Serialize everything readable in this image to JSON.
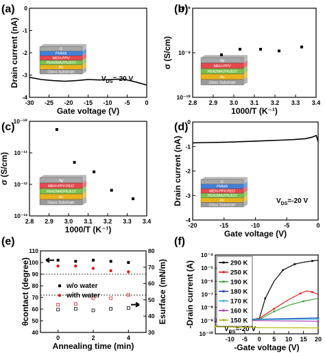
{
  "panels": [
    {
      "label": "(a)",
      "chart_data": {
        "type": "line",
        "xlabel": "Gate voltage (V)",
        "ylabel": "Drain current (nA)",
        "xlim": [
          -30,
          0
        ],
        "ylim": [
          -4,
          0
        ],
        "xticks": [
          "-30",
          "-25",
          "-20",
          "-15",
          "-10",
          "-5",
          "0"
        ],
        "yticks": [
          "-4",
          "-3",
          "-2",
          "-1",
          "0"
        ],
        "annotation": "V_DS=-20 V",
        "inset_layers": [
          "G",
          "PMMA",
          "MEH-PPV",
          "PEA2MA2Pb3I10",
          "Au",
          "Glass Substrate"
        ],
        "series": [
          {
            "x": [
              -30,
              -27,
              -24,
              -21,
              -18,
              -15,
              -12,
              -9,
              -6,
              -3,
              0
            ],
            "y": [
              -3.1,
              -3.2,
              -3.25,
              -3.28,
              -3.25,
              -3.2,
              -3.22,
              -3.2,
              -3.18,
              -3.3,
              -3.45
            ]
          }
        ]
      }
    },
    {
      "label": "(b)",
      "chart_data": {
        "type": "scatter",
        "xlabel": "1000/T (K⁻¹)",
        "ylabel": "σ (S/cm)",
        "xlim": [
          2.8,
          3.4
        ],
        "ylim_log10": [
          -10,
          -8
        ],
        "xticks": [
          "2.8",
          "2.9",
          "3.0",
          "3.1",
          "3.2",
          "3.3",
          "3.4"
        ],
        "yticks": [
          "10⁻⁸",
          "10⁻⁹",
          "10⁻¹⁰"
        ],
        "inset_layers": [
          "Ag",
          "MEH-PPV",
          "PEA2MA2Pb3I10",
          "Au",
          "Glass Substrate"
        ],
        "series": [
          {
            "x": [
              2.94,
              3.03,
              3.13,
              3.22,
              3.33
            ],
            "y": [
              9e-10,
              1.2e-09,
              1.2e-09,
              1.1e-09,
              1.35e-09
            ]
          }
        ]
      }
    },
    {
      "label": "(c)",
      "chart_data": {
        "type": "scatter",
        "xlabel": "1000/T (K⁻¹)",
        "ylabel": "σ (S/cm)",
        "xlim": [
          2.8,
          3.4
        ],
        "ylim_log10": [
          -13,
          -10
        ],
        "xticks": [
          "2.8",
          "2.9",
          "3.0",
          "3.1",
          "3.2",
          "3.3",
          "3.4"
        ],
        "yticks": [
          "10⁻¹⁰",
          "10⁻¹¹",
          "10⁻¹²",
          "10⁻¹³"
        ],
        "inset_layers": [
          "Ag",
          "MEH-PPV:PEO",
          "PEA2MA2Pb3I10",
          "Au",
          "Glass Substrate"
        ],
        "series": [
          {
            "x": [
              2.94,
              3.03,
              3.13,
              3.22,
              3.33
            ],
            "y": [
              5.5e-11,
              5e-12,
              2.5e-12,
              6.5e-13,
              3.5e-13
            ]
          }
        ]
      }
    },
    {
      "label": "(d)",
      "chart_data": {
        "type": "line",
        "xlabel": "Gate voltage (V)",
        "ylabel": "Drain current (nA)",
        "xlim": [
          -20,
          0
        ],
        "ylim": [
          -4,
          0
        ],
        "xticks": [
          "-20",
          "-15",
          "-10",
          "-5",
          "0"
        ],
        "yticks": [
          "-4",
          "-3",
          "-2",
          "-1",
          "0"
        ],
        "annotation": "V_DS=-20 V",
        "inset_layers": [
          "G",
          "PMMA",
          "MEH-PPV:PEO",
          "PEA2MA2Pb3I10",
          "Au",
          "Glass Substrate"
        ],
        "series": [
          {
            "x": [
              -20,
              -18,
              -16,
              -14,
              -12,
              -10,
              -8,
              -6,
              -4,
              -2,
              -1,
              -0.3,
              0
            ],
            "y": [
              -0.85,
              -0.84,
              -0.83,
              -0.82,
              -0.8,
              -0.78,
              -0.76,
              -0.74,
              -0.72,
              -0.68,
              -0.62,
              -0.55,
              -0.8
            ]
          }
        ]
      }
    },
    {
      "label": "(e)",
      "chart_data": {
        "type": "scatter",
        "xlabel": "Annealing time (min)",
        "ylabel": "θcontact (degree)",
        "y2label": "Esurface (mN/m)",
        "xlim": [
          -1,
          5
        ],
        "ylim": [
          40,
          110
        ],
        "y2lim": [
          30,
          80
        ],
        "xticks": [
          "0",
          "2",
          "4"
        ],
        "yticks": [
          "40",
          "50",
          "60",
          "70",
          "80",
          "90",
          "100",
          "110"
        ],
        "y2ticks": [
          "30",
          "40",
          "50",
          "60",
          "70",
          "80"
        ],
        "hlines": [
          90,
          72
        ],
        "legend": [
          "w/o water",
          "with water"
        ],
        "series": [
          {
            "name": "w/o water",
            "axis": "left",
            "filled": true,
            "color": "#000000",
            "x": [
              0,
              1,
              2,
              3,
              4
            ],
            "y": [
              102,
              101,
              102,
              101,
              100
            ]
          },
          {
            "name": "with water",
            "axis": "left",
            "filled": true,
            "color": "#e31a1c",
            "x": [
              0,
              1,
              2,
              3,
              4
            ],
            "y": [
              97,
              97,
              95,
              93,
              92
            ]
          },
          {
            "name": "w/o water",
            "axis": "right",
            "filled": false,
            "color": "#000000",
            "x": [
              0,
              1,
              2,
              3,
              4
            ],
            "y": [
              44,
              44.5,
              43.5,
              44.5,
              45
            ]
          },
          {
            "name": "with water",
            "axis": "right",
            "filled": false,
            "color": "#e31a1c",
            "x": [
              0,
              1,
              2,
              3,
              4
            ],
            "y": [
              47,
              47.5,
              51,
              51,
              53
            ]
          }
        ]
      }
    },
    {
      "label": "(f)",
      "chart_data": {
        "type": "line",
        "xlabel": "-Gate voltage (V)",
        "ylabel": "-Drain current (A)",
        "xlim": [
          -15,
          20
        ],
        "ylim_log10": [
          -10,
          -4
        ],
        "xticks": [
          "-10",
          "-5",
          "0",
          "5",
          "10",
          "15",
          "20"
        ],
        "yticks": [
          "10⁻⁴",
          "10⁻⁵",
          "10⁻⁶",
          "10⁻⁷",
          "10⁻⁸",
          "10⁻⁹",
          "10⁻¹⁰"
        ],
        "annotation": "V_DS=-20 V",
        "series": [
          {
            "name": "290 K",
            "color": "#000000",
            "x": [
              -15,
              -10,
              -5,
              0,
              2,
              5,
              8,
              10,
              12,
              15,
              18,
              20
            ],
            "y": [
              9e-10,
              9e-10,
              9.5e-10,
              1.5e-09,
              5e-08,
              1e-06,
              7e-06,
              1.2e-05,
              2e-05,
              2.8e-05,
              3.5e-05,
              4e-05
            ]
          },
          {
            "name": "250 K",
            "color": "#e31a1c",
            "x": [
              -15,
              -10,
              -5,
              0,
              5,
              10,
              14,
              16,
              18,
              20
            ],
            "y": [
              1e-09,
              1e-09,
              1e-09,
              1.5e-09,
              8e-09,
              4e-08,
              1.2e-07,
              1.8e-07,
              1.5e-07,
              1e-07
            ]
          },
          {
            "name": "190 K",
            "color": "#3aa63a",
            "x": [
              -15,
              -10,
              -5,
              0,
              5,
              10,
              15,
              20
            ],
            "y": [
              1e-09,
              1e-09,
              1e-09,
              1.2e-09,
              5e-09,
              1.5e-08,
              3e-08,
              5e-08
            ]
          },
          {
            "name": "180 K",
            "color": "#1f3fbf",
            "x": [
              -15,
              0,
              20
            ],
            "y": [
              1.3e-09,
              1.3e-09,
              1.6e-09
            ]
          },
          {
            "name": "170 K",
            "color": "#31b3d1",
            "x": [
              -15,
              0,
              20
            ],
            "y": [
              1.2e-09,
              1.2e-09,
              1.3e-09
            ]
          },
          {
            "name": "160 K",
            "color": "#b23ab2",
            "x": [
              -15,
              0,
              20
            ],
            "y": [
              1.1e-09,
              1e-09,
              9e-10
            ]
          },
          {
            "name": "150 K",
            "color": "#b3b300",
            "x": [
              -15,
              0,
              20
            ],
            "y": [
              3.5e-10,
              3e-10,
              2.8e-10
            ]
          }
        ]
      }
    }
  ]
}
